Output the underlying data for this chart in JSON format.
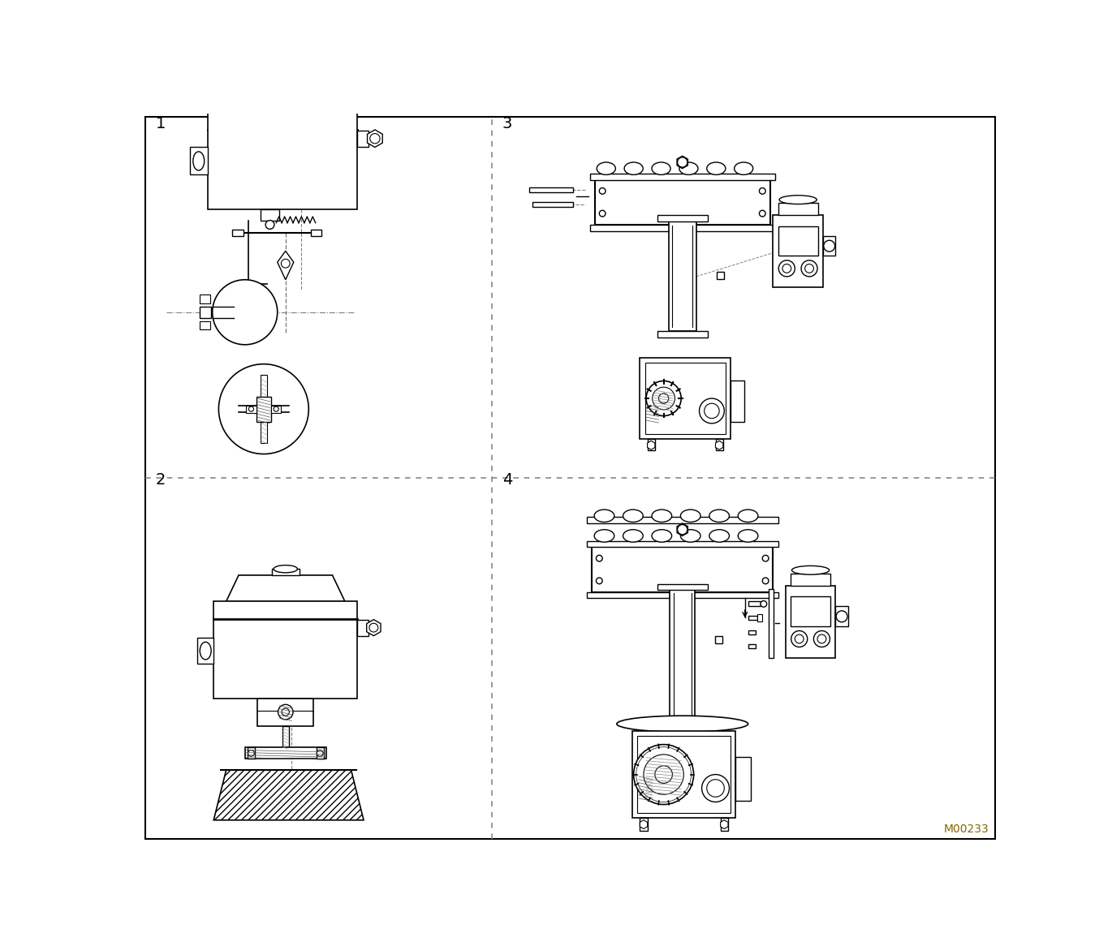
{
  "title": "",
  "background_color": "#ffffff",
  "border_color": "#000000",
  "line_color": "#000000",
  "label_color": "#000000",
  "panel_labels": [
    "1",
    "2",
    "3",
    "4"
  ],
  "watermark": "M00233",
  "divider_color": "#888888",
  "hatch_color": "#000000"
}
